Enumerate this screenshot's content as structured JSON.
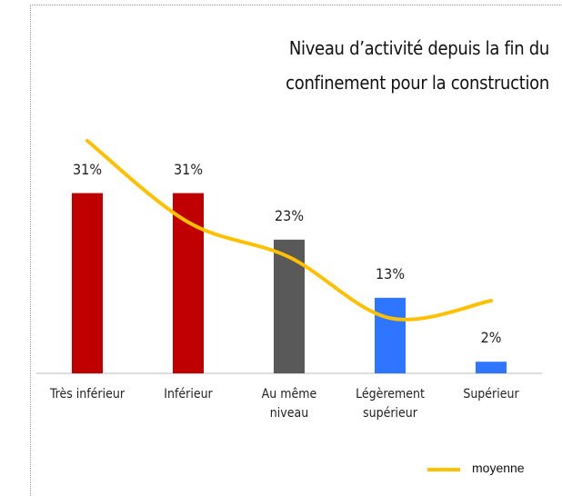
{
  "chart_data": {
    "type": "bar",
    "title": "Niveau d’activité depuis la fin du confinement pour la construction",
    "categories": [
      "Très inférieur",
      "Inférieur",
      "Au même niveau",
      "Légèrement supérieur",
      "Supérieur"
    ],
    "values": [
      31,
      31,
      23,
      13,
      2
    ],
    "value_labels": [
      "31%",
      "31%",
      "23%",
      "13%",
      "2%"
    ],
    "colors": [
      "#c00000",
      "#c00000",
      "#595959",
      "#2e75ff",
      "#2e75ff"
    ],
    "series": [
      {
        "name": "moyenne",
        "type": "line",
        "color": "#ffc000",
        "values": [
          40,
          26,
          20,
          9.5,
          12.5
        ]
      }
    ]
  }
}
